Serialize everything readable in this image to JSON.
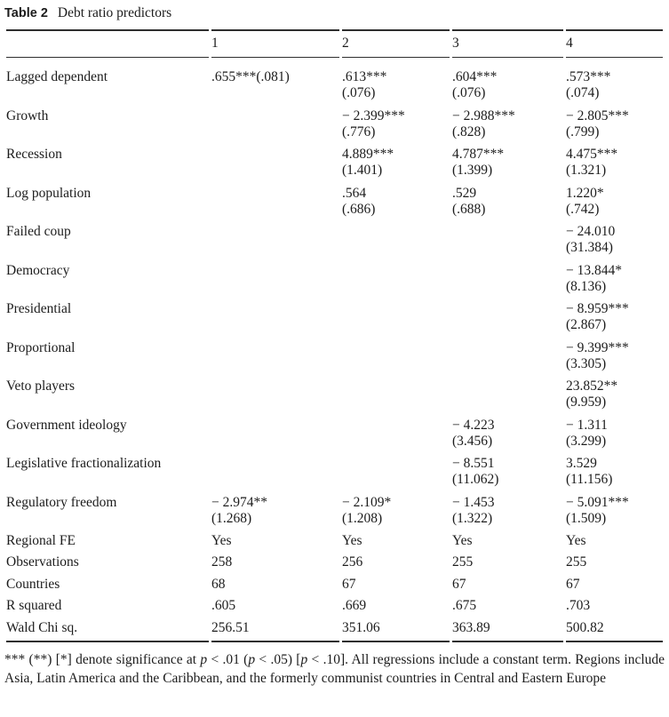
{
  "title": {
    "label": "Table 2",
    "caption": "Debt ratio predictors"
  },
  "colors": {
    "text": "#1c1c1c",
    "rule": "#2e2e2e"
  },
  "table": {
    "column_headers": [
      "",
      "1",
      "2",
      "3",
      "4"
    ],
    "rows": [
      {
        "label": "Lagged dependent",
        "cells": [
          {
            "coef": ".655***(.081)",
            "se": ""
          },
          {
            "coef": ".613***",
            "se": "(.076)"
          },
          {
            "coef": ".604***",
            "se": "(.076)"
          },
          {
            "coef": ".573***",
            "se": "(.074)"
          }
        ]
      },
      {
        "label": "Growth",
        "cells": [
          {
            "coef": "",
            "se": ""
          },
          {
            "coef": "− 2.399***",
            "se": "(.776)"
          },
          {
            "coef": "− 2.988***",
            "se": "(.828)"
          },
          {
            "coef": "− 2.805***",
            "se": "(.799)"
          }
        ]
      },
      {
        "label": "Recession",
        "cells": [
          {
            "coef": "",
            "se": ""
          },
          {
            "coef": "4.889***",
            "se": "(1.401)"
          },
          {
            "coef": "4.787***",
            "se": "(1.399)"
          },
          {
            "coef": "4.475***",
            "se": "(1.321)"
          }
        ]
      },
      {
        "label": "Log population",
        "cells": [
          {
            "coef": "",
            "se": ""
          },
          {
            "coef": ".564",
            "se": "(.686)"
          },
          {
            "coef": ".529",
            "se": "(.688)"
          },
          {
            "coef": "1.220*",
            "se": "(.742)"
          }
        ]
      },
      {
        "label": "Failed coup",
        "cells": [
          {
            "coef": "",
            "se": ""
          },
          {
            "coef": "",
            "se": ""
          },
          {
            "coef": "",
            "se": ""
          },
          {
            "coef": "− 24.010",
            "se": "(31.384)"
          }
        ]
      },
      {
        "label": "Democracy",
        "cells": [
          {
            "coef": "",
            "se": ""
          },
          {
            "coef": "",
            "se": ""
          },
          {
            "coef": "",
            "se": ""
          },
          {
            "coef": "− 13.844*",
            "se": "(8.136)"
          }
        ]
      },
      {
        "label": "Presidential",
        "cells": [
          {
            "coef": "",
            "se": ""
          },
          {
            "coef": "",
            "se": ""
          },
          {
            "coef": "",
            "se": ""
          },
          {
            "coef": "− 8.959***",
            "se": "(2.867)"
          }
        ]
      },
      {
        "label": "Proportional",
        "cells": [
          {
            "coef": "",
            "se": ""
          },
          {
            "coef": "",
            "se": ""
          },
          {
            "coef": "",
            "se": ""
          },
          {
            "coef": "− 9.399***",
            "se": "(3.305)"
          }
        ]
      },
      {
        "label": "Veto players",
        "cells": [
          {
            "coef": "",
            "se": ""
          },
          {
            "coef": "",
            "se": ""
          },
          {
            "coef": "",
            "se": ""
          },
          {
            "coef": "23.852**",
            "se": "(9.959)"
          }
        ]
      },
      {
        "label": "Government ideology",
        "cells": [
          {
            "coef": "",
            "se": ""
          },
          {
            "coef": "",
            "se": ""
          },
          {
            "coef": "− 4.223",
            "se": "(3.456)"
          },
          {
            "coef": "− 1.311",
            "se": "(3.299)"
          }
        ]
      },
      {
        "label": "Legislative fractionalization",
        "cells": [
          {
            "coef": "",
            "se": ""
          },
          {
            "coef": "",
            "se": ""
          },
          {
            "coef": "− 8.551",
            "se": "(11.062)"
          },
          {
            "coef": "3.529",
            "se": "(11.156)"
          }
        ]
      },
      {
        "label": "Regulatory freedom",
        "cells": [
          {
            "coef": "− 2.974**",
            "se": "(1.268)"
          },
          {
            "coef": "− 2.109*",
            "se": "(1.208)"
          },
          {
            "coef": "− 1.453",
            "se": "(1.322)"
          },
          {
            "coef": "− 5.091***",
            "se": "(1.509)"
          }
        ]
      }
    ],
    "summary_rows": [
      {
        "label": "Regional FE",
        "values": [
          "Yes",
          "Yes",
          "Yes",
          "Yes"
        ]
      },
      {
        "label": "Observations",
        "values": [
          "258",
          "256",
          "255",
          "255"
        ]
      },
      {
        "label": "Countries",
        "values": [
          "68",
          "67",
          "67",
          "67"
        ]
      },
      {
        "label": "R squared",
        "values": [
          ".605",
          ".669",
          ".675",
          ".703"
        ]
      },
      {
        "label": "Wald Chi sq.",
        "values": [
          "256.51",
          "351.06",
          "363.89",
          "500.82"
        ]
      }
    ]
  },
  "footnote": {
    "parts": [
      "*** (**) [*] denote significance at ",
      "p",
      " < .01 (",
      "p",
      " < .05) [",
      "p",
      " < .10]. All regressions include a constant term. Regions include Asia, Latin America and the Caribbean, and the formerly communist countries in Central and Eastern Europe"
    ]
  }
}
